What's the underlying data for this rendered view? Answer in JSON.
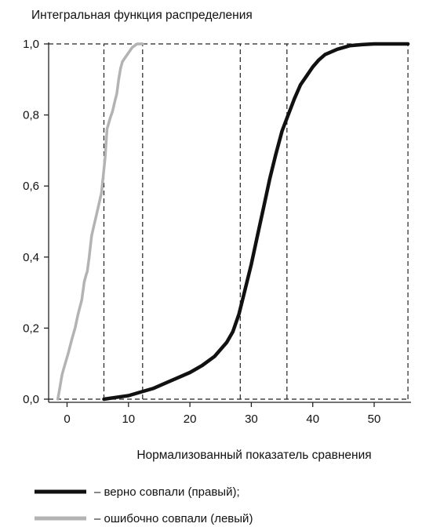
{
  "chart_data": {
    "type": "line",
    "title": "",
    "ylabel": "Интегральная функция распределения",
    "xlabel": "Нормализованный показатель сравнения",
    "xlim": [
      -3,
      56
    ],
    "ylim": [
      0,
      1
    ],
    "x_ticks": [
      0,
      10,
      20,
      30,
      40,
      50
    ],
    "y_ticks": [
      0.0,
      0.2,
      0.4,
      0.6,
      0.8,
      1.0
    ],
    "x_tick_labels": [
      "0",
      "10",
      "20",
      "30",
      "40",
      "50"
    ],
    "y_tick_labels": [
      "0,0",
      "0,2",
      "0,4",
      "0,6",
      "0,8",
      "1,0"
    ],
    "grid": false,
    "reference_lines": {
      "horizontal": [
        0.0,
        1.0
      ],
      "vertical": [
        6,
        12.3,
        28.2,
        35.8,
        55.5
      ]
    },
    "legend_position": "bottom",
    "series": [
      {
        "name": "– верно совпали (правый);",
        "color": "#111111",
        "x": [
          6,
          8,
          10,
          12,
          14,
          16,
          18,
          20,
          22,
          24,
          26,
          27,
          28,
          29,
          30,
          31,
          32,
          33,
          34,
          35,
          36,
          37,
          38,
          39,
          40,
          41,
          42,
          44,
          46,
          48,
          50,
          52,
          55.5
        ],
        "y": [
          0.0,
          0.005,
          0.01,
          0.02,
          0.03,
          0.045,
          0.06,
          0.075,
          0.095,
          0.12,
          0.16,
          0.19,
          0.24,
          0.31,
          0.38,
          0.46,
          0.54,
          0.62,
          0.69,
          0.755,
          0.8,
          0.845,
          0.885,
          0.91,
          0.935,
          0.955,
          0.97,
          0.985,
          0.995,
          0.998,
          1.0,
          1.0,
          1.0
        ]
      },
      {
        "name": "– ошибочно совпали (левый)",
        "color": "#b3b3b3",
        "x": [
          -1.5,
          -1.2,
          -0.8,
          -0.3,
          0.2,
          0.8,
          1.3,
          1.8,
          2.4,
          2.8,
          3.1,
          3.3,
          3.6,
          4.0,
          4.4,
          4.8,
          5.2,
          5.6,
          5.9,
          6.2,
          6.5,
          7.0,
          7.4,
          7.8,
          8.1,
          8.4,
          8.7,
          9.0,
          9.4,
          9.8,
          10.2,
          10.6,
          11.0,
          11.4,
          11.8,
          12.3
        ],
        "y": [
          0.0,
          0.03,
          0.07,
          0.1,
          0.13,
          0.17,
          0.2,
          0.24,
          0.28,
          0.33,
          0.35,
          0.36,
          0.4,
          0.46,
          0.49,
          0.52,
          0.55,
          0.58,
          0.63,
          0.68,
          0.76,
          0.79,
          0.81,
          0.84,
          0.86,
          0.9,
          0.93,
          0.95,
          0.96,
          0.97,
          0.98,
          0.99,
          0.995,
          1.0,
          1.0,
          1.0
        ]
      }
    ]
  }
}
